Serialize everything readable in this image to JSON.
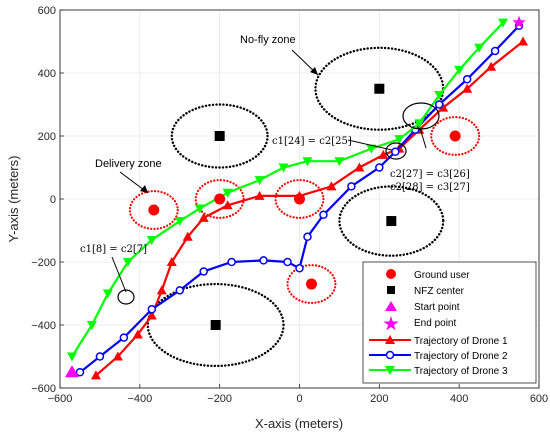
{
  "chart_data": {
    "type": "line",
    "xlabel": "X-axis (meters)",
    "ylabel": "Y-axis (meters)",
    "xlim": [
      -600,
      600
    ],
    "ylim": [
      -600,
      600
    ],
    "xticks": [
      -600,
      -400,
      -200,
      0,
      200,
      400,
      600
    ],
    "yticks": [
      -600,
      -400,
      -200,
      0,
      200,
      400,
      600
    ],
    "grid": true,
    "legend_position": "bottom-right",
    "colors": {
      "drone1": "#ff0000",
      "drone2": "#0000ff",
      "drone3": "#00ff00",
      "ground_user": "#ff0000",
      "nfz_center": "#000000",
      "start": "#ff00ff",
      "end": "#ff00ff"
    },
    "legend": [
      {
        "key": "ground",
        "label": "Ground user"
      },
      {
        "key": "nfz",
        "label": "NFZ center"
      },
      {
        "key": "start",
        "label": "Start point"
      },
      {
        "key": "end",
        "label": "End point"
      },
      {
        "key": "d1",
        "label": "Trajectory of Drone 1"
      },
      {
        "key": "d2",
        "label": "Trajectory of Drone 2"
      },
      {
        "key": "d3",
        "label": "Trajectory of Drone 3"
      }
    ],
    "ground_users": [
      [
        -365,
        -35
      ],
      [
        -200,
        0
      ],
      [
        0,
        0
      ],
      [
        390,
        200
      ],
      [
        30,
        -270
      ]
    ],
    "delivery_zone_radius": 60,
    "nfz_centers": [
      [
        -200,
        200
      ],
      [
        200,
        350
      ],
      [
        230,
        -70
      ],
      [
        -210,
        -400
      ]
    ],
    "nfz_radii": [
      [
        120,
        100
      ],
      [
        160,
        130
      ],
      [
        130,
        110
      ],
      [
        170,
        130
      ]
    ],
    "start_point": [
      -570,
      -550
    ],
    "end_point": [
      550,
      560
    ],
    "series": [
      {
        "name": "Trajectory of Drone 1",
        "points": [
          [
            -510,
            -560
          ],
          [
            -455,
            -500
          ],
          [
            -405,
            -430
          ],
          [
            -370,
            -370
          ],
          [
            -345,
            -290
          ],
          [
            -320,
            -200
          ],
          [
            -280,
            -120
          ],
          [
            -240,
            -60
          ],
          [
            -180,
            -20
          ],
          [
            -100,
            10
          ],
          [
            0,
            10
          ],
          [
            80,
            40
          ],
          [
            150,
            100
          ],
          [
            210,
            140
          ],
          [
            250,
            160
          ],
          [
            300,
            220
          ],
          [
            360,
            290
          ],
          [
            420,
            350
          ],
          [
            480,
            420
          ],
          [
            560,
            500
          ]
        ]
      },
      {
        "name": "Trajectory of Drone 2",
        "points": [
          [
            -550,
            -550
          ],
          [
            -500,
            -500
          ],
          [
            -440,
            -440
          ],
          [
            -370,
            -350
          ],
          [
            -300,
            -290
          ],
          [
            -240,
            -230
          ],
          [
            -170,
            -200
          ],
          [
            -90,
            -195
          ],
          [
            -30,
            -200
          ],
          [
            0,
            -220
          ],
          [
            20,
            -120
          ],
          [
            60,
            -50
          ],
          [
            130,
            40
          ],
          [
            200,
            100
          ],
          [
            240,
            150
          ],
          [
            290,
            220
          ],
          [
            350,
            300
          ],
          [
            420,
            380
          ],
          [
            490,
            470
          ],
          [
            550,
            550
          ]
        ]
      },
      {
        "name": "Trajectory of Drone 3",
        "points": [
          [
            -570,
            -500
          ],
          [
            -520,
            -400
          ],
          [
            -480,
            -300
          ],
          [
            -430,
            -200
          ],
          [
            -370,
            -130
          ],
          [
            -300,
            -70
          ],
          [
            -250,
            -30
          ],
          [
            -180,
            20
          ],
          [
            -100,
            60
          ],
          [
            -40,
            100
          ],
          [
            20,
            120
          ],
          [
            100,
            120
          ],
          [
            180,
            160
          ],
          [
            250,
            190
          ],
          [
            300,
            240
          ],
          [
            350,
            330
          ],
          [
            400,
            410
          ],
          [
            450,
            480
          ],
          [
            510,
            560
          ]
        ]
      }
    ],
    "annotations": [
      {
        "key": "nfz_label",
        "text": "No-fly zone"
      },
      {
        "key": "delivery_label",
        "text": "Delivery zone"
      },
      {
        "key": "eq1",
        "text": "c1[24] = c2[25]"
      },
      {
        "key": "eq2",
        "text": "c2[27] = c3[26]"
      },
      {
        "key": "eq3",
        "text": "c2[28] = c3[27]"
      },
      {
        "key": "eq4",
        "text": "c1[8] = c2[7]"
      }
    ]
  }
}
